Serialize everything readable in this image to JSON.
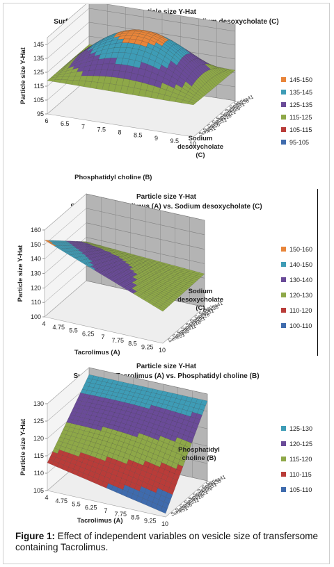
{
  "figure_caption": {
    "label": "Figure 1:",
    "text": "Effect of independent variables on vesicle size of transfersome containing Tacrolimus."
  },
  "chart_data": [
    {
      "type": "surface",
      "title": "Particle size Y-Hat",
      "subtitle": "Surface Plot Phosphatidyl choline  (B) vs. Sodium desoxycholate  (C)",
      "xlabel": "Phosphatidyl choline  (B)",
      "ylabel": "Particle size Y-Hat",
      "zlabel": [
        "Sodium",
        "desoxycholate",
        "(C)"
      ],
      "x_ticks": [
        "6",
        "6.5",
        "7",
        "7.5",
        "8",
        "8.5",
        "9",
        "9.5",
        "10"
      ],
      "y_ticks": [
        "95",
        "105",
        "115",
        "125",
        "135",
        "145"
      ],
      "ylim": [
        95,
        150
      ],
      "series_labels": [
        "Series1",
        "Series6",
        "Series11",
        "Series16",
        "Series21",
        "Series26",
        "Series31",
        "Series36",
        "Series41"
      ],
      "legend": [
        {
          "range": "145-150",
          "color": "#e8853a"
        },
        {
          "range": "135-145",
          "color": "#3e9cb6"
        },
        {
          "range": "125-135",
          "color": "#6a4b98"
        },
        {
          "range": "115-125",
          "color": "#8ea848"
        },
        {
          "range": "105-115",
          "color": "#b93c39"
        },
        {
          "range": "95-105",
          "color": "#3f6bad"
        }
      ],
      "surface": {
        "corners": [
          119,
          118,
          117,
          119
        ],
        "peak": 146
      }
    },
    {
      "type": "surface",
      "title": "Particle size Y-Hat",
      "subtitle": "Surface Plot Tacrolimus (A) vs. Sodium desoxycholate  (C)",
      "xlabel": "Tacrolimus (A)",
      "ylabel": "Particle size Y-Hat",
      "zlabel": [
        "Sodium",
        "desoxycholate",
        "(C)"
      ],
      "x_ticks": [
        "4",
        "4.75",
        "5.5",
        "6.25",
        "7",
        "7.75",
        "8.5",
        "9.25",
        "10"
      ],
      "y_ticks": [
        "100",
        "110",
        "120",
        "130",
        "140",
        "150",
        "160"
      ],
      "ylim": [
        100,
        160
      ],
      "series_labels": [
        "Series1",
        "Series6",
        "Series11",
        "Series16",
        "Series21",
        "Series26",
        "Series31",
        "Series36",
        "Series41"
      ],
      "legend": [
        {
          "range": "150-160",
          "color": "#e8853a"
        },
        {
          "range": "140-150",
          "color": "#3e9cb6"
        },
        {
          "range": "130-140",
          "color": "#6a4b98"
        },
        {
          "range": "120-130",
          "color": "#8ea848"
        },
        {
          "range": "110-120",
          "color": "#b93c39"
        },
        {
          "range": "100-110",
          "color": "#3f6bad"
        }
      ],
      "surface": {
        "corners": [
          153,
          122,
          123,
          127
        ],
        "peak": 153
      }
    },
    {
      "type": "surface",
      "title": "Particle size Y-Hat",
      "subtitle": "Surface Plot Tacrolimus (A) vs. Phosphatidyl choline  (B)",
      "xlabel": "Tacrolimus (A)",
      "ylabel": "Particle size Y-Hat",
      "zlabel": [
        "Phosphatidyl",
        "choline  (B)"
      ],
      "x_ticks": [
        "4",
        "4.75",
        "5.5",
        "6.25",
        "7",
        "7.75",
        "8.5",
        "9.25",
        "10"
      ],
      "y_ticks": [
        "105",
        "110",
        "115",
        "120",
        "125",
        "130"
      ],
      "ylim": [
        105,
        130
      ],
      "series_labels": [
        "Series1",
        "Series6",
        "Series11",
        "Series16",
        "Series21",
        "Series26",
        "Series31",
        "Series36",
        "Series41"
      ],
      "legend": [
        {
          "range": "125-130",
          "color": "#3e9cb6"
        },
        {
          "range": "120-125",
          "color": "#6a4b98"
        },
        {
          "range": "115-120",
          "color": "#8ea848"
        },
        {
          "range": "110-115",
          "color": "#b93c39"
        },
        {
          "range": "105-110",
          "color": "#3f6bad"
        }
      ],
      "surface": {
        "corners": [
          113,
          106,
          128,
          128
        ],
        "peak": 129
      }
    }
  ]
}
